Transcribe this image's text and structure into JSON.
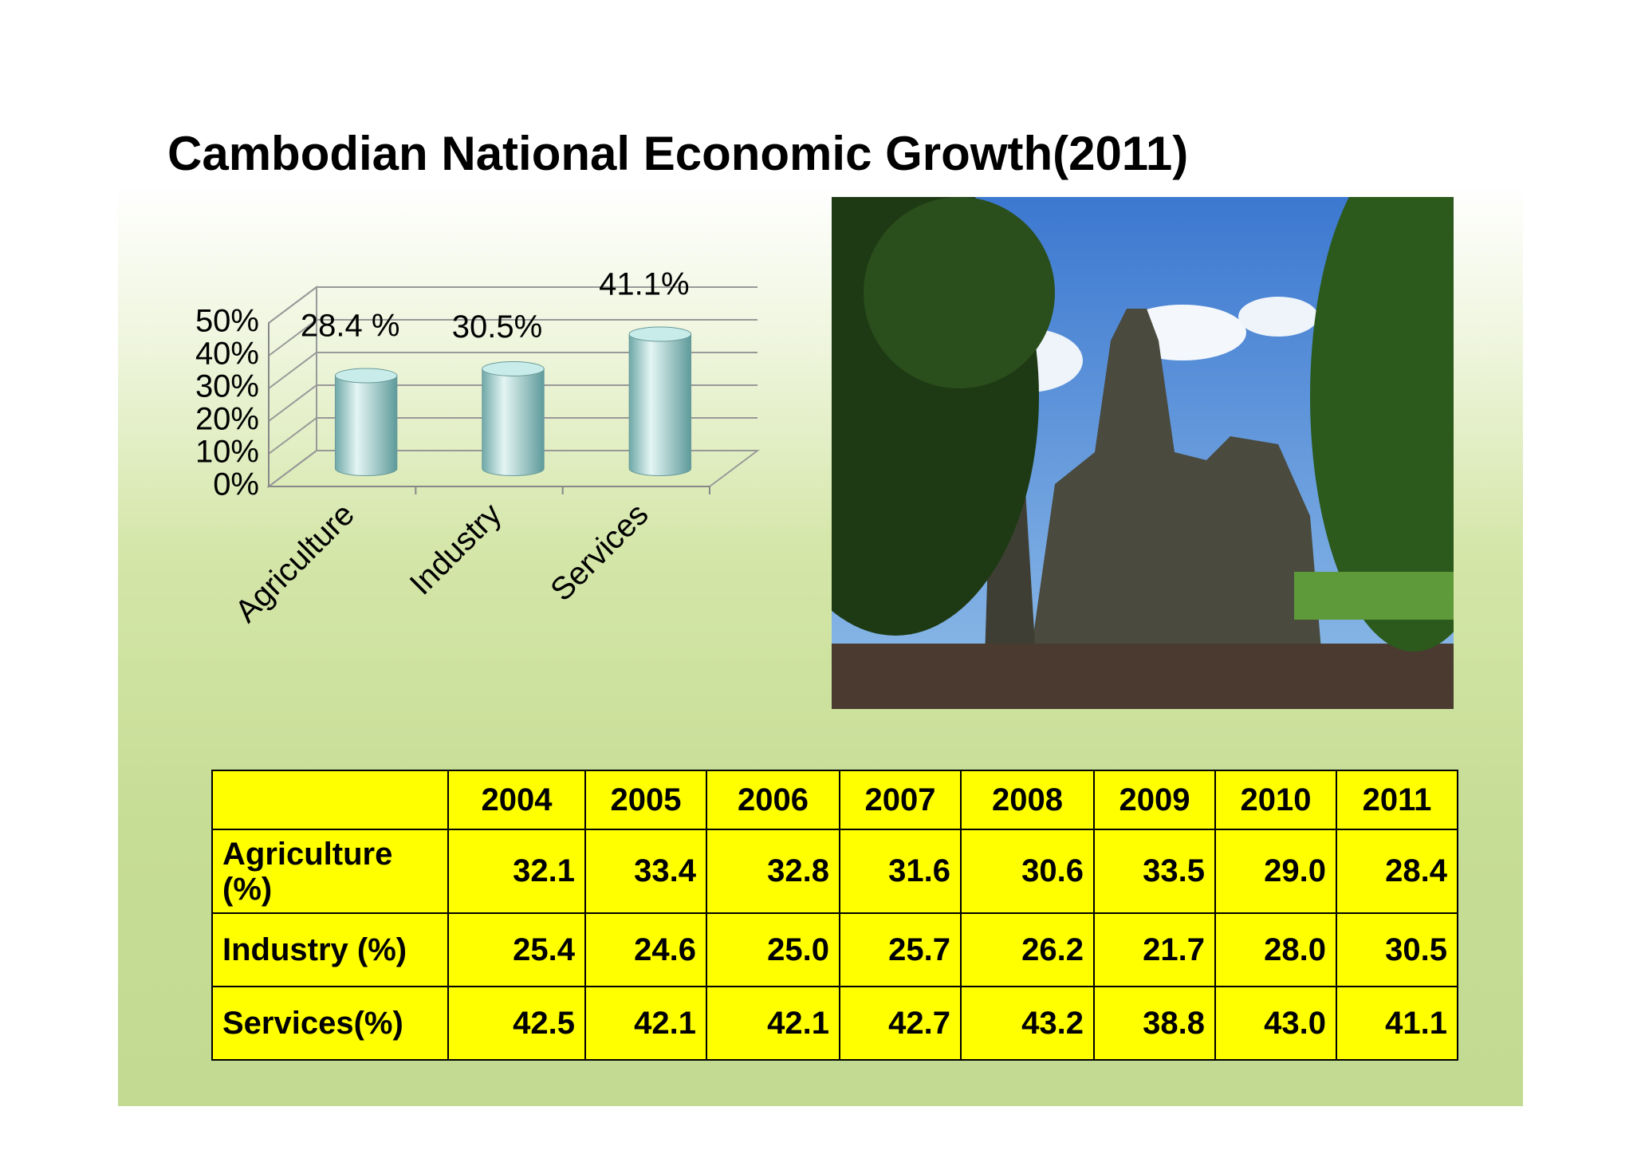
{
  "title": "Cambodian National Economic Growth(2011)",
  "chart_data": {
    "type": "bar3d",
    "categories": [
      "Agriculture",
      "Industry",
      "Services"
    ],
    "values": [
      28.4,
      30.5,
      41.1
    ],
    "value_labels": [
      "28.4 %",
      "30.5%",
      "41.1%"
    ],
    "color": "#a8dcd8",
    "ylim": [
      0,
      50
    ],
    "yticks": [
      {
        "value": 0,
        "label": "0%"
      },
      {
        "value": 10,
        "label": "10%"
      },
      {
        "value": 20,
        "label": "20%"
      },
      {
        "value": 30,
        "label": "30%"
      },
      {
        "value": 40,
        "label": "40%"
      },
      {
        "value": 50,
        "label": "50%"
      }
    ],
    "grid": true
  },
  "table": {
    "columns": [
      "2004",
      "2005",
      "2006",
      "2007",
      "2008",
      "2009",
      "2010",
      "2011"
    ],
    "rows": [
      {
        "label": "Agriculture (%)",
        "values": [
          "32.1",
          "33.4",
          "32.8",
          "31.6",
          "30.6",
          "33.5",
          "29.0",
          "28.4"
        ]
      },
      {
        "label": "Industry (%)",
        "values": [
          "25.4",
          "24.6",
          "25.0",
          "25.7",
          "26.2",
          "21.7",
          "28.0",
          "30.5"
        ]
      },
      {
        "label": "Services(%)",
        "values": [
          "42.5",
          "42.1",
          "42.1",
          "42.7",
          "43.2",
          "38.8",
          "43.0",
          "41.1"
        ]
      }
    ]
  }
}
